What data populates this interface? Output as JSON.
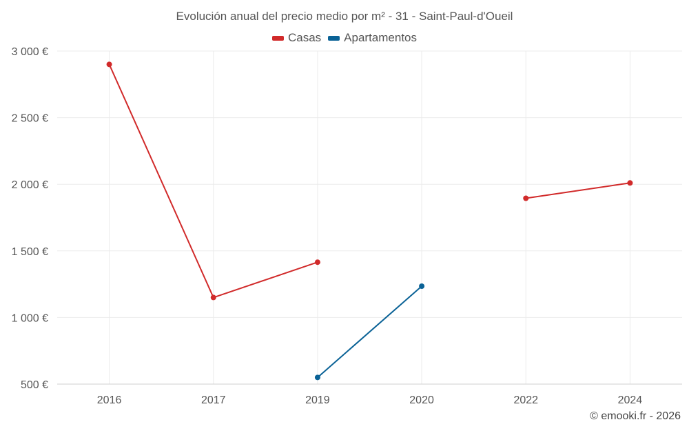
{
  "chart_data": {
    "type": "line",
    "title": "Evolución anual del precio medio por m² - 31 - Saint-Paul-d'Oueil",
    "categories": [
      "2016",
      "2017",
      "2019",
      "2020",
      "2022",
      "2024"
    ],
    "yticks": [
      "500 €",
      "1 000 €",
      "1 500 €",
      "2 000 €",
      "2 500 €",
      "3 000 €"
    ],
    "ytick_values": [
      500,
      1000,
      1500,
      2000,
      2500,
      3000
    ],
    "ylim": [
      500,
      3000
    ],
    "xlabel": "",
    "ylabel": "",
    "grid": true,
    "legend_position": "top-center",
    "series": [
      {
        "name": "Casas",
        "color": "#d12a2a",
        "values": [
          2900,
          1150,
          1415,
          null,
          1895,
          2010
        ]
      },
      {
        "name": "Apartamentos",
        "color": "#0a6296",
        "values": [
          null,
          null,
          550,
          1235,
          null,
          null
        ]
      }
    ]
  },
  "credit": "© emooki.fr - 2026"
}
